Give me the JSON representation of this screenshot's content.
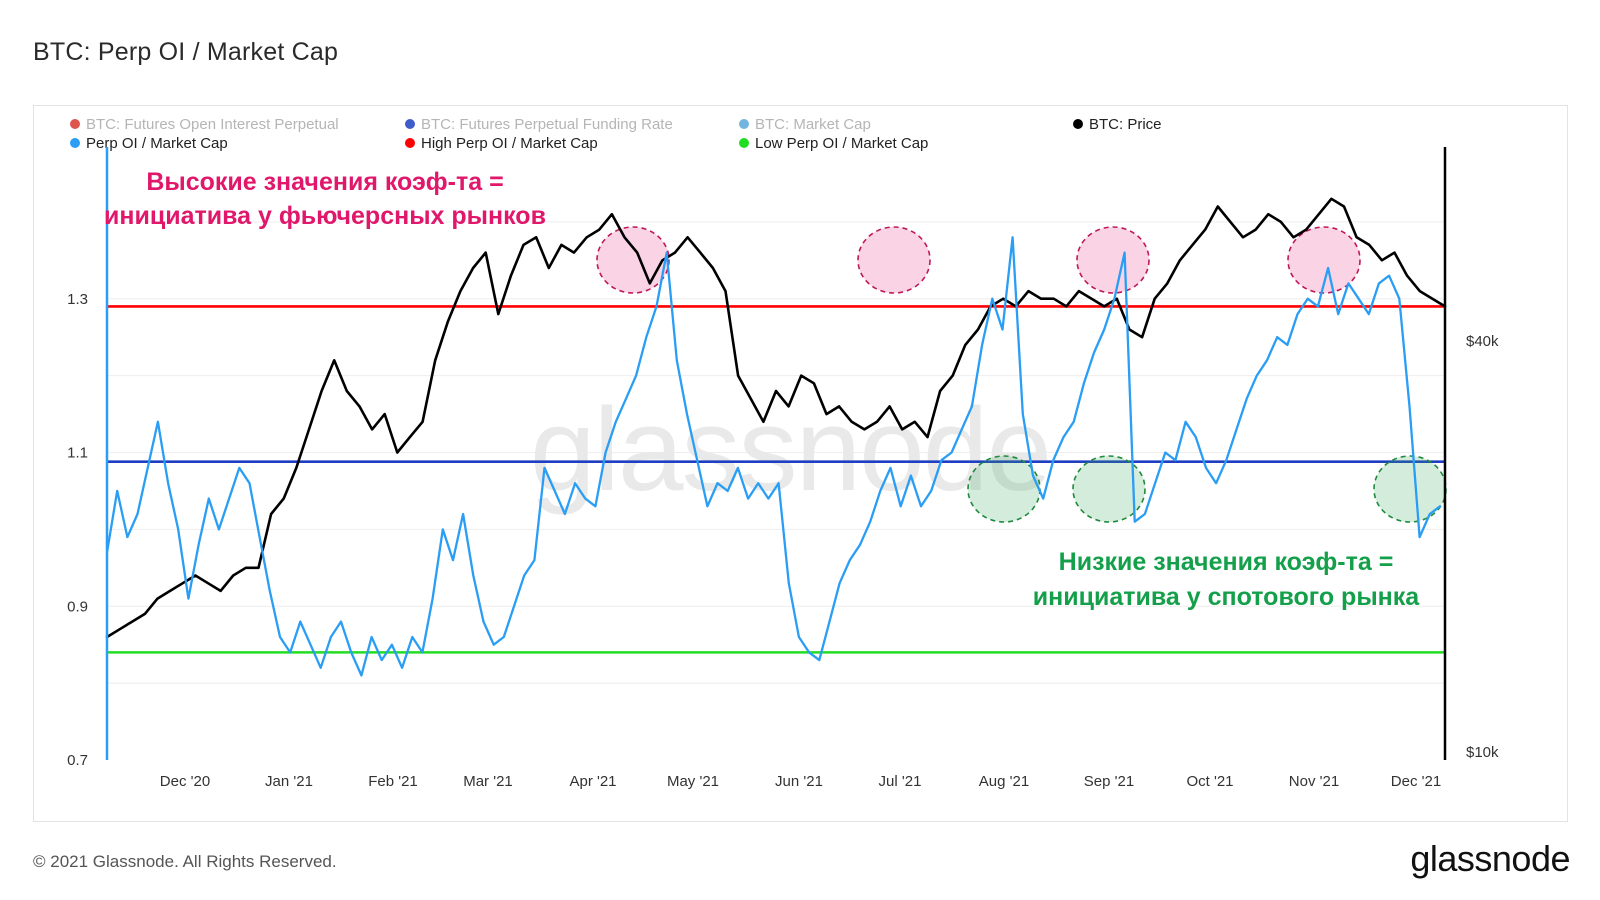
{
  "header": {
    "title": "BTC: Perp OI / Market Cap"
  },
  "footer": {
    "copyright": "© 2021 Glassnode. All Rights Reserved.",
    "logo": "glassnode"
  },
  "watermark": "glassnode",
  "legend": [
    {
      "label": "BTC: Futures Open Interest Perpetual",
      "color": "#d9362b",
      "muted": true
    },
    {
      "label": "BTC: Futures Perpetual Funding Rate",
      "color": "#1f3fc2",
      "muted": true
    },
    {
      "label": "BTC: Market Cap",
      "color": "#5aa8d8",
      "muted": true
    },
    {
      "label": "BTC: Price",
      "color": "#000000",
      "muted": false
    },
    {
      "label": "Perp OI / Market Cap",
      "color": "#2a9df4",
      "muted": false
    },
    {
      "label": "High Perp OI / Market Cap",
      "color": "#ff0000",
      "muted": false
    },
    {
      "label": "Low Perp OI / Market Cap",
      "color": "#22dd22",
      "muted": false
    }
  ],
  "annotations": {
    "high_line1": "Высокие значения коэф-та =",
    "high_line2": "инициатива у фьючерсных рынков",
    "low_line1": "Низкие значения коэф-та =",
    "low_line2": "инициатива у спотового рынка"
  },
  "chart_data": {
    "type": "line",
    "x_tick_labels": [
      "Dec '20",
      "Jan '21",
      "Feb '21",
      "Mar '21",
      "Apr '21",
      "May '21",
      "Jun '21",
      "Jul '21",
      "Aug '21",
      "Sep '21",
      "Oct '21",
      "Nov '21",
      "Dec '21"
    ],
    "left_axis": {
      "ticks": [
        "0.7",
        "0.9",
        "1.1",
        "1.3"
      ],
      "ylim": [
        0.7,
        1.5
      ]
    },
    "right_axis": {
      "ticks": [
        "$10k",
        "$40k"
      ],
      "scale": "log"
    },
    "thresholds": [
      {
        "name": "High Perp OI / Market Cap",
        "value": 1.29,
        "color": "#ff0000"
      },
      {
        "name": "Low Perp OI / Market Cap",
        "value": 0.84,
        "color": "#22dd22"
      },
      {
        "name": "BTC: Futures Perpetual Funding Rate",
        "value": 1.088,
        "color": "#1f3fc2"
      }
    ],
    "series": [
      {
        "name": "Perp OI / Market Cap",
        "color": "#2a9df4",
        "values": [
          0.97,
          1.05,
          0.99,
          1.02,
          1.08,
          1.14,
          1.06,
          1.0,
          0.91,
          0.98,
          1.04,
          1.0,
          1.04,
          1.08,
          1.06,
          0.99,
          0.92,
          0.86,
          0.84,
          0.88,
          0.85,
          0.82,
          0.86,
          0.88,
          0.84,
          0.81,
          0.86,
          0.83,
          0.85,
          0.82,
          0.86,
          0.84,
          0.91,
          1.0,
          0.96,
          1.02,
          0.94,
          0.88,
          0.85,
          0.86,
          0.9,
          0.94,
          0.96,
          1.08,
          1.05,
          1.02,
          1.06,
          1.04,
          1.03,
          1.1,
          1.14,
          1.17,
          1.2,
          1.25,
          1.29,
          1.36,
          1.22,
          1.15,
          1.09,
          1.03,
          1.06,
          1.05,
          1.08,
          1.04,
          1.06,
          1.04,
          1.06,
          0.93,
          0.86,
          0.84,
          0.83,
          0.88,
          0.93,
          0.96,
          0.98,
          1.01,
          1.05,
          1.08,
          1.03,
          1.07,
          1.03,
          1.05,
          1.09,
          1.1,
          1.13,
          1.16,
          1.24,
          1.3,
          1.26,
          1.38,
          1.15,
          1.07,
          1.04,
          1.09,
          1.12,
          1.14,
          1.19,
          1.23,
          1.26,
          1.3,
          1.36,
          1.01,
          1.02,
          1.06,
          1.1,
          1.09,
          1.14,
          1.12,
          1.08,
          1.06,
          1.09,
          1.13,
          1.17,
          1.2,
          1.22,
          1.25,
          1.24,
          1.28,
          1.3,
          1.29,
          1.34,
          1.28,
          1.32,
          1.3,
          1.28,
          1.32,
          1.33,
          1.3,
          1.16,
          0.99,
          1.02,
          1.03
        ]
      },
      {
        "name": "BTC: Price",
        "color": "#000000",
        "values": [
          0.86,
          0.87,
          0.88,
          0.89,
          0.91,
          0.92,
          0.93,
          0.94,
          0.93,
          0.92,
          0.94,
          0.95,
          0.95,
          1.02,
          1.04,
          1.08,
          1.13,
          1.18,
          1.22,
          1.18,
          1.16,
          1.13,
          1.15,
          1.1,
          1.12,
          1.14,
          1.22,
          1.27,
          1.31,
          1.34,
          1.36,
          1.28,
          1.33,
          1.37,
          1.38,
          1.34,
          1.37,
          1.36,
          1.38,
          1.39,
          1.41,
          1.38,
          1.36,
          1.32,
          1.35,
          1.36,
          1.38,
          1.36,
          1.34,
          1.31,
          1.2,
          1.17,
          1.14,
          1.18,
          1.16,
          1.2,
          1.19,
          1.15,
          1.16,
          1.14,
          1.13,
          1.14,
          1.16,
          1.13,
          1.14,
          1.12,
          1.18,
          1.2,
          1.24,
          1.26,
          1.29,
          1.3,
          1.29,
          1.31,
          1.3,
          1.3,
          1.29,
          1.31,
          1.3,
          1.29,
          1.3,
          1.26,
          1.25,
          1.3,
          1.32,
          1.35,
          1.37,
          1.39,
          1.42,
          1.4,
          1.38,
          1.39,
          1.41,
          1.4,
          1.38,
          1.39,
          1.41,
          1.43,
          1.42,
          1.38,
          1.37,
          1.35,
          1.36,
          1.33,
          1.31,
          1.3,
          1.29
        ]
      }
    ],
    "highlights": [
      {
        "kind": "high",
        "x_label": "Apr '21"
      },
      {
        "kind": "high",
        "x_label": "Jul '21"
      },
      {
        "kind": "high",
        "x_label": "Sep '21"
      },
      {
        "kind": "high",
        "x_label": "Nov '21"
      },
      {
        "kind": "low",
        "x_label": "Aug '21"
      },
      {
        "kind": "low",
        "x_label": "Sep '21"
      },
      {
        "kind": "low",
        "x_label": "Dec '21"
      }
    ]
  }
}
